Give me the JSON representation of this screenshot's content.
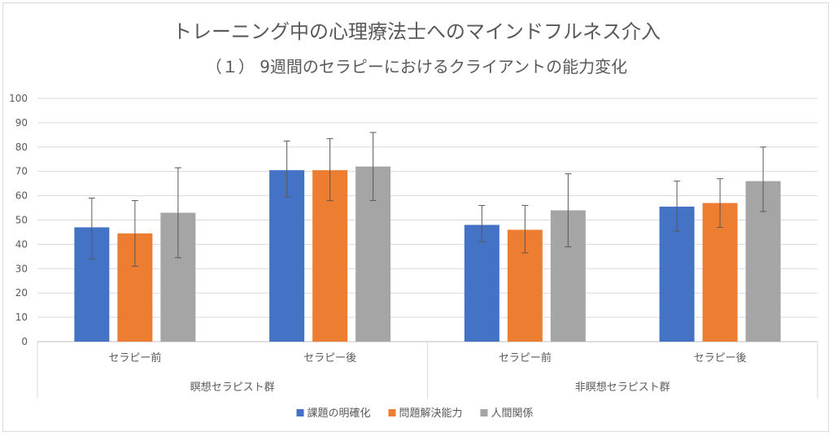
{
  "chart_data": {
    "type": "bar",
    "title": "トレーニング中の心理療法士へのマインドフルネス介入",
    "subtitle": "（１） 9週間のセラピーにおけるクライアントの能力変化",
    "ylim": [
      0,
      100
    ],
    "yticks": [
      0,
      10,
      20,
      30,
      40,
      50,
      60,
      70,
      80,
      90,
      100
    ],
    "groups": [
      {
        "label": "瞑想セラピスト群",
        "categories": [
          "セラピー前",
          "セラピー後"
        ]
      },
      {
        "label": "非瞑想セラピスト群",
        "categories": [
          "セラピー前",
          "セラピー後"
        ]
      }
    ],
    "categories": [
      "セラピー前",
      "セラピー後",
      "セラピー前",
      "セラピー後"
    ],
    "series": [
      {
        "name": "課題の明確化",
        "color": "#4472c4",
        "values": [
          47,
          70.5,
          48,
          55.5
        ],
        "error_low": [
          34,
          59.5,
          41,
          45.5
        ],
        "error_high": [
          59,
          82.5,
          56,
          66
        ]
      },
      {
        "name": "問題解決能力",
        "color": "#ed7d31",
        "values": [
          44.5,
          70.5,
          46,
          57
        ],
        "error_low": [
          31,
          58,
          36.5,
          47
        ],
        "error_high": [
          58,
          83.5,
          56,
          67
        ]
      },
      {
        "name": "人間関係",
        "color": "#a5a5a5",
        "values": [
          53,
          72,
          54,
          66
        ],
        "error_low": [
          34.5,
          58,
          39,
          53.5
        ],
        "error_high": [
          71.5,
          86,
          69,
          80
        ]
      }
    ],
    "legend_position": "bottom",
    "grid": true
  }
}
